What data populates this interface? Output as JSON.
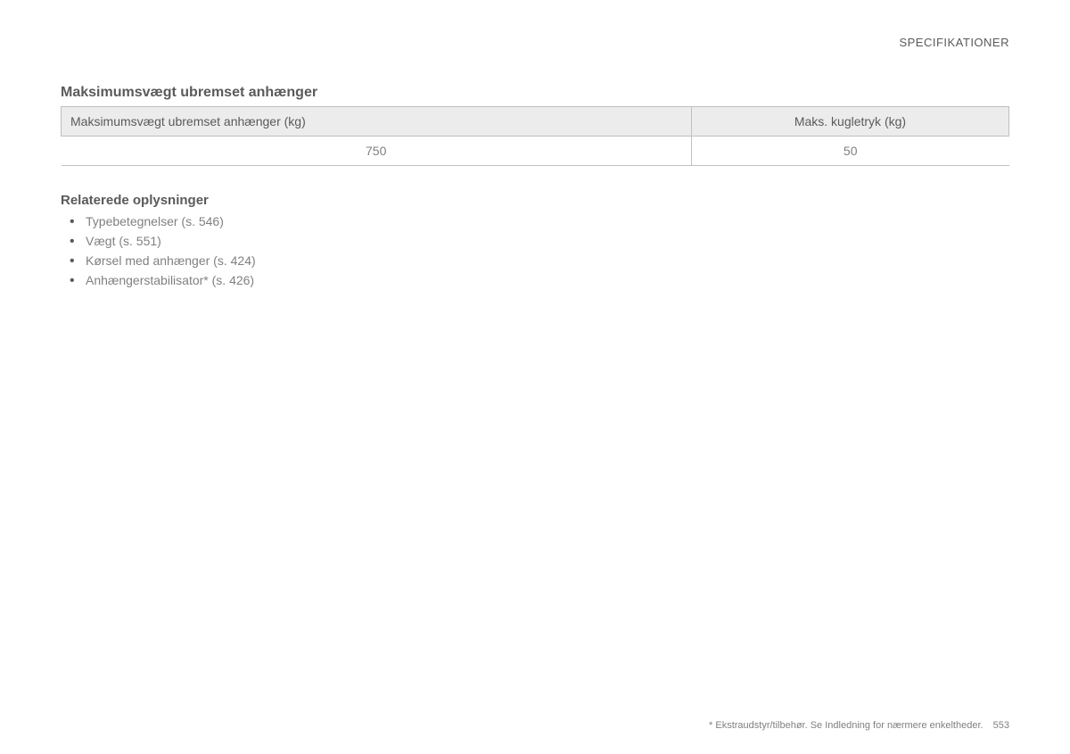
{
  "header": {
    "category": "SPECIFIKATIONER"
  },
  "section": {
    "title": "Maksimumsvægt ubremset anhænger"
  },
  "table": {
    "columns": [
      "Maksimumsvægt ubremset anhænger (kg)",
      "Maks. kugletryk (kg)"
    ],
    "rows": [
      [
        "750",
        "50"
      ]
    ],
    "header_bg": "#ececec",
    "border_color": "#bfbfbf",
    "col_widths": [
      "66.5%",
      "33.5%"
    ]
  },
  "related": {
    "title": "Relaterede oplysninger",
    "items": [
      "Typebetegnelser (s. 546)",
      "Vægt (s. 551)",
      "Kørsel med anhænger (s. 424)",
      "Anhængerstabilisator* (s. 426)"
    ]
  },
  "footer": {
    "note": "* Ekstraudstyr/tilbehør. Se Indledning for nærmere enkeltheder.",
    "page_number": "553"
  },
  "colors": {
    "text_primary": "#5a5a5a",
    "text_secondary": "#808080",
    "background": "#ffffff"
  },
  "typography": {
    "base_font": "Arial, Helvetica, sans-serif",
    "section_title_size": 16,
    "body_size": 14,
    "footer_size": 11
  }
}
